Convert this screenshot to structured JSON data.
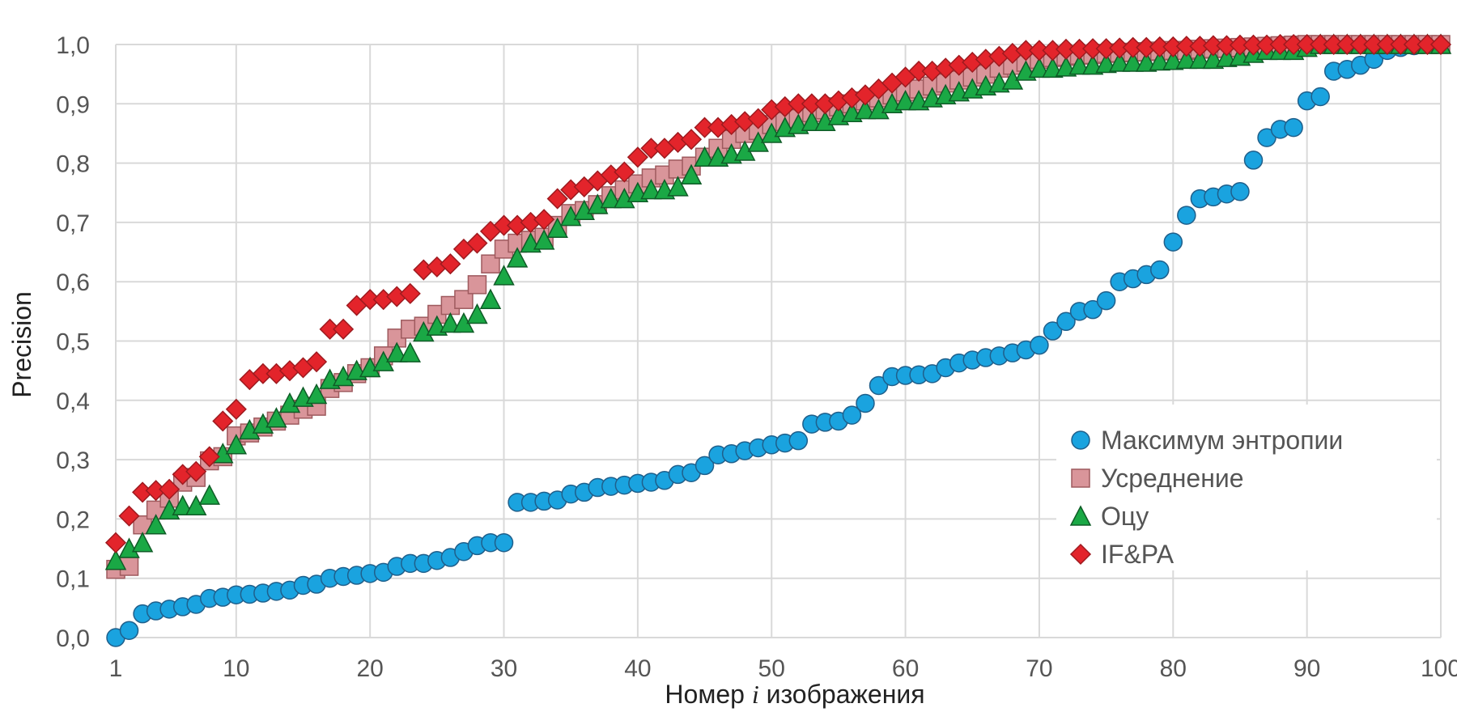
{
  "chart_data": {
    "type": "scatter",
    "title": "",
    "xlabel_pre": "Номер ",
    "xlabel_var": "i",
    "xlabel_post": " изображения",
    "ylabel": "Precision",
    "xlim": [
      1,
      100
    ],
    "ylim": [
      0,
      1
    ],
    "x_ticks": [
      "1",
      "10",
      "20",
      "30",
      "40",
      "50",
      "60",
      "70",
      "80",
      "90",
      "100"
    ],
    "x_tick_values": [
      1,
      10,
      20,
      30,
      40,
      50,
      60,
      70,
      80,
      90,
      100
    ],
    "y_ticks": [
      "0,0",
      "0,1",
      "0,2",
      "0,3",
      "0,4",
      "0,5",
      "0,6",
      "0,7",
      "0,8",
      "0,9",
      "1,0"
    ],
    "y_tick_values": [
      0,
      0.1,
      0.2,
      0.3,
      0.4,
      0.5,
      0.6,
      0.7,
      0.8,
      0.9,
      1.0
    ],
    "grid": true,
    "legend_position": "bottom-right",
    "series": [
      {
        "name": "Максимум энтропии",
        "marker": "circle",
        "color": "#1aa3df",
        "stroke": "#1f5f8b",
        "values": [
          0.0,
          0.012,
          0.04,
          0.045,
          0.048,
          0.052,
          0.056,
          0.066,
          0.068,
          0.072,
          0.073,
          0.075,
          0.078,
          0.08,
          0.088,
          0.09,
          0.1,
          0.103,
          0.105,
          0.108,
          0.11,
          0.12,
          0.125,
          0.125,
          0.13,
          0.135,
          0.145,
          0.155,
          0.16,
          0.16,
          0.228,
          0.228,
          0.23,
          0.232,
          0.242,
          0.245,
          0.253,
          0.255,
          0.257,
          0.26,
          0.262,
          0.265,
          0.275,
          0.278,
          0.29,
          0.308,
          0.31,
          0.315,
          0.32,
          0.325,
          0.328,
          0.332,
          0.36,
          0.363,
          0.365,
          0.375,
          0.395,
          0.425,
          0.44,
          0.442,
          0.443,
          0.445,
          0.455,
          0.463,
          0.468,
          0.472,
          0.475,
          0.48,
          0.485,
          0.493,
          0.517,
          0.533,
          0.55,
          0.553,
          0.568,
          0.6,
          0.605,
          0.612,
          0.62,
          0.667,
          0.712,
          0.74,
          0.743,
          0.748,
          0.752,
          0.805,
          0.843,
          0.857,
          0.86,
          0.905,
          0.912,
          0.955,
          0.958,
          0.965,
          0.975,
          0.99,
          0.995,
          0.998,
          1.0,
          1.0
        ]
      },
      {
        "name": "Усреднение",
        "marker": "square",
        "color": "#d9959a",
        "stroke": "#9e5a5e",
        "values": [
          0.115,
          0.12,
          0.19,
          0.215,
          0.235,
          0.262,
          0.27,
          0.298,
          0.305,
          0.34,
          0.345,
          0.355,
          0.365,
          0.375,
          0.385,
          0.39,
          0.42,
          0.43,
          0.445,
          0.455,
          0.475,
          0.505,
          0.52,
          0.525,
          0.545,
          0.56,
          0.57,
          0.595,
          0.63,
          0.655,
          0.665,
          0.67,
          0.675,
          0.695,
          0.715,
          0.72,
          0.73,
          0.745,
          0.755,
          0.765,
          0.775,
          0.78,
          0.79,
          0.795,
          0.81,
          0.825,
          0.84,
          0.85,
          0.855,
          0.865,
          0.87,
          0.875,
          0.885,
          0.89,
          0.895,
          0.9,
          0.905,
          0.91,
          0.915,
          0.92,
          0.925,
          0.93,
          0.935,
          0.94,
          0.945,
          0.95,
          0.96,
          0.965,
          0.97,
          0.975,
          0.978,
          0.98,
          0.982,
          0.983,
          0.985,
          0.986,
          0.987,
          0.988,
          0.989,
          0.99,
          0.99,
          0.992,
          0.993,
          0.994,
          0.995,
          0.996,
          0.997,
          0.998,
          0.999,
          1.0,
          1.0,
          1.0,
          1.0,
          1.0,
          1.0,
          1.0,
          1.0,
          1.0,
          1.0,
          1.0
        ]
      },
      {
        "name": "Оцу",
        "marker": "triangle",
        "color": "#1aa845",
        "stroke": "#0f5c27",
        "values": [
          0.13,
          0.15,
          0.16,
          0.19,
          0.215,
          0.222,
          0.222,
          0.24,
          0.31,
          0.325,
          0.35,
          0.36,
          0.37,
          0.395,
          0.405,
          0.41,
          0.435,
          0.44,
          0.45,
          0.455,
          0.465,
          0.48,
          0.48,
          0.515,
          0.525,
          0.53,
          0.53,
          0.545,
          0.57,
          0.61,
          0.64,
          0.665,
          0.67,
          0.69,
          0.71,
          0.72,
          0.73,
          0.74,
          0.74,
          0.75,
          0.755,
          0.755,
          0.76,
          0.78,
          0.81,
          0.81,
          0.815,
          0.82,
          0.835,
          0.85,
          0.86,
          0.865,
          0.87,
          0.87,
          0.88,
          0.885,
          0.89,
          0.89,
          0.9,
          0.905,
          0.905,
          0.91,
          0.915,
          0.92,
          0.925,
          0.93,
          0.935,
          0.94,
          0.955,
          0.96,
          0.96,
          0.962,
          0.965,
          0.965,
          0.968,
          0.97,
          0.97,
          0.97,
          0.972,
          0.973,
          0.975,
          0.975,
          0.975,
          0.978,
          0.98,
          0.985,
          0.99,
          0.99,
          0.99,
          0.995,
          1.0,
          1.0,
          1.0,
          1.0,
          1.0,
          1.0,
          1.0,
          1.0,
          1.0,
          1.0
        ]
      },
      {
        "name": "IF&PA",
        "marker": "diamond",
        "color": "#e3242b",
        "stroke": "#9e1a1f",
        "values": [
          0.16,
          0.205,
          0.245,
          0.248,
          0.25,
          0.275,
          0.28,
          0.305,
          0.365,
          0.385,
          0.435,
          0.445,
          0.445,
          0.45,
          0.455,
          0.465,
          0.52,
          0.52,
          0.56,
          0.57,
          0.57,
          0.575,
          0.58,
          0.62,
          0.625,
          0.63,
          0.655,
          0.665,
          0.685,
          0.695,
          0.695,
          0.7,
          0.705,
          0.74,
          0.755,
          0.76,
          0.77,
          0.78,
          0.785,
          0.81,
          0.825,
          0.825,
          0.835,
          0.84,
          0.86,
          0.86,
          0.865,
          0.87,
          0.875,
          0.89,
          0.895,
          0.9,
          0.9,
          0.9,
          0.905,
          0.91,
          0.915,
          0.925,
          0.935,
          0.945,
          0.955,
          0.955,
          0.96,
          0.965,
          0.97,
          0.975,
          0.98,
          0.985,
          0.99,
          0.99,
          0.99,
          0.992,
          0.992,
          0.993,
          0.993,
          0.994,
          0.995,
          0.995,
          0.996,
          0.996,
          0.997,
          0.997,
          0.998,
          0.998,
          0.999,
          0.999,
          0.999,
          1.0,
          1.0,
          1.0,
          1.0,
          1.0,
          1.0,
          1.0,
          1.0,
          1.0,
          1.0,
          1.0,
          1.0,
          1.0
        ]
      }
    ]
  }
}
